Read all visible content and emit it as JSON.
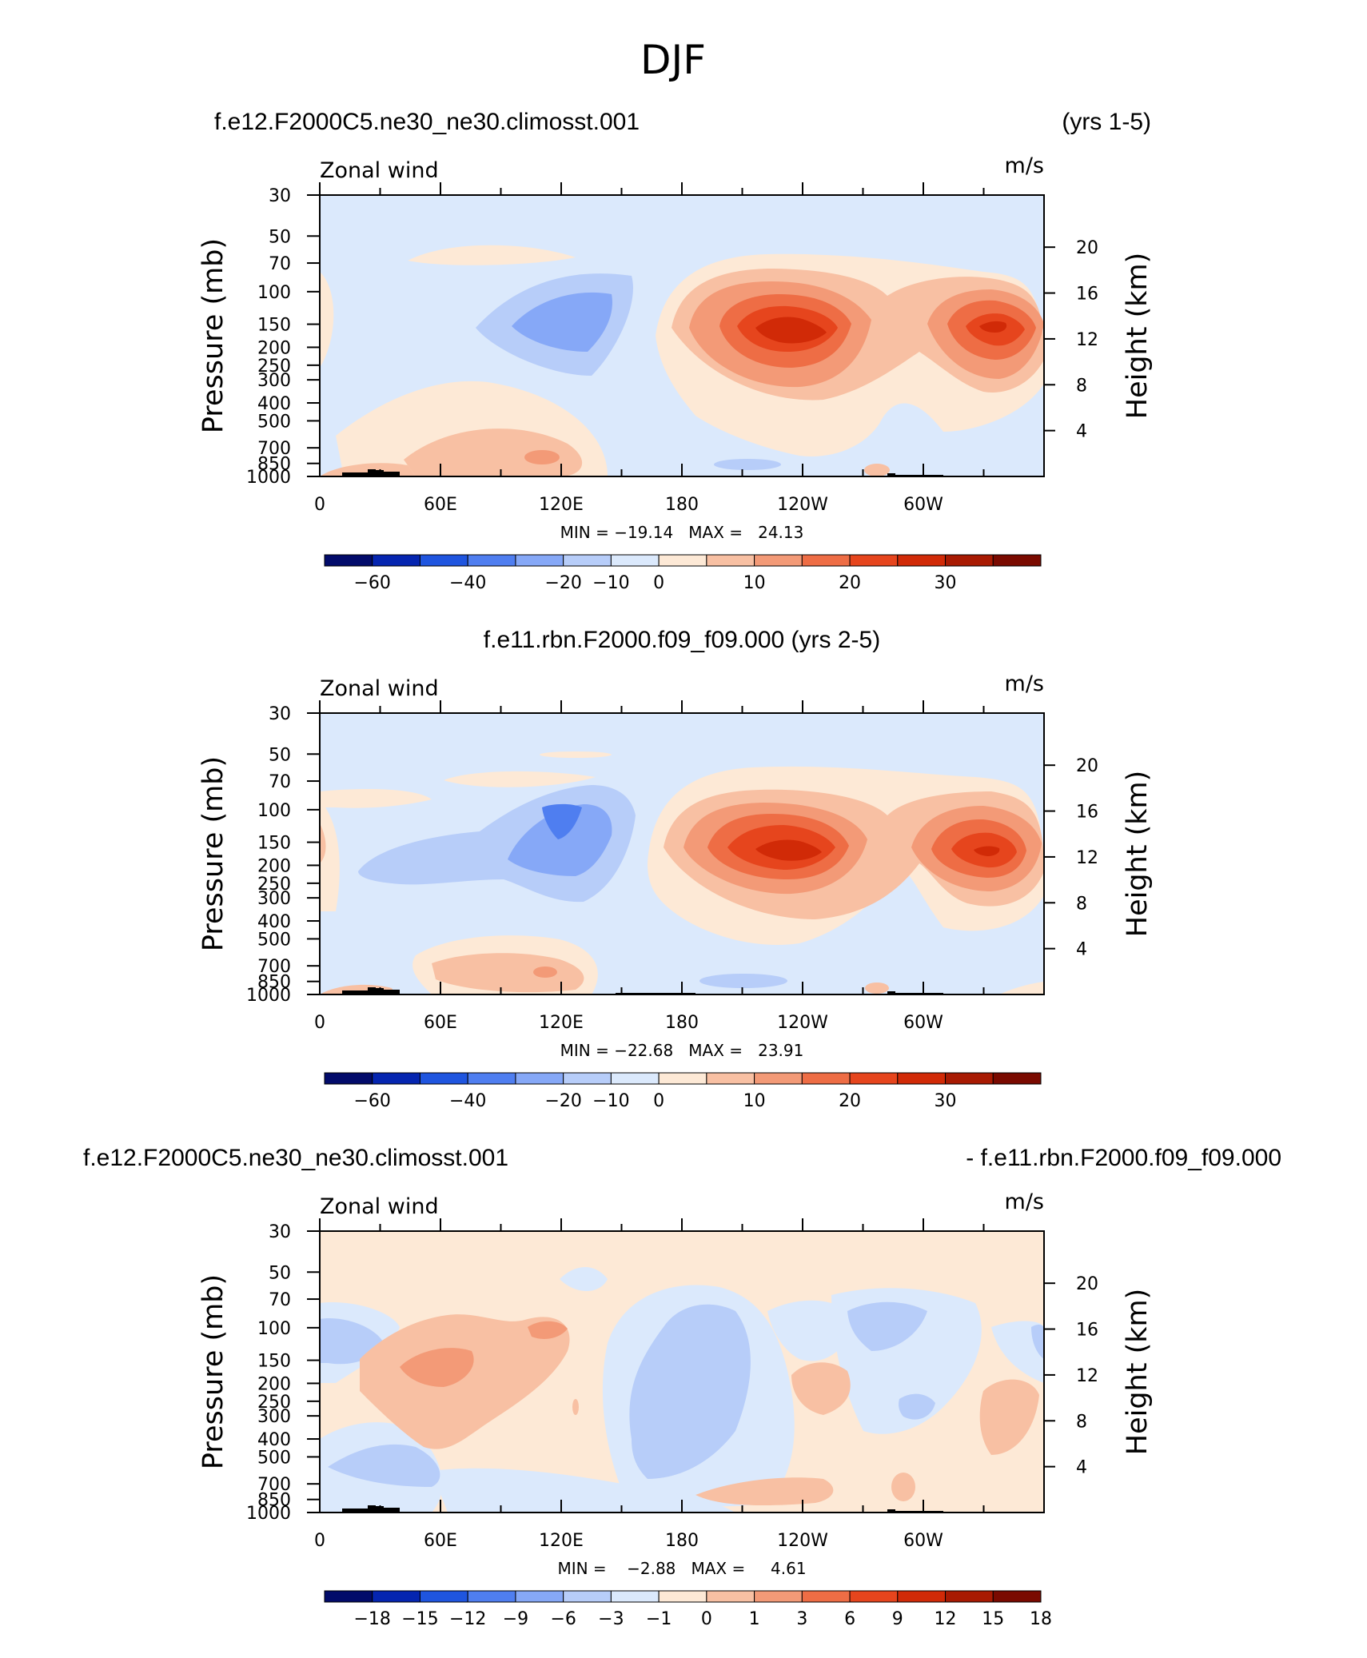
{
  "figure_title": "DJF",
  "chart_data": [
    {
      "type": "heatmap",
      "title_left": "f.e12.F2000C5.ne30_ne30.climosst.001",
      "title_right": "(yrs 1-5)",
      "variable": "Zonal wind",
      "units": "m/s",
      "ylabel": "Pressure (mb)",
      "ylabel_right": "Height (km)",
      "x_ticks": [
        "0",
        "60E",
        "120E",
        "180",
        "120W",
        "60W"
      ],
      "y_ticks": [
        "30",
        "50",
        "70",
        "100",
        "150",
        "200",
        "250",
        "300",
        "400",
        "500",
        "700",
        "850",
        "1000"
      ],
      "height_ticks": [
        "20",
        "16",
        "12",
        "8",
        "4"
      ],
      "stats_text": "MIN = −19.14   MAX =   24.13",
      "min": -19.14,
      "max": 24.13,
      "colorbar_ticks": [
        "−60",
        "−40",
        "−20",
        "−10",
        "0",
        "10",
        "20",
        "30"
      ],
      "features": [
        {
          "kind": "jet",
          "center_lon": 225,
          "center_p": 150,
          "value": 24.13
        },
        {
          "kind": "jet",
          "center_lon": 315,
          "center_p": 150,
          "value": 20
        },
        {
          "kind": "easterly",
          "center_lon": 115,
          "center_p": 150,
          "value": -19.14
        }
      ]
    },
    {
      "type": "heatmap",
      "title": "f.e11.rbn.F2000.f09_f09.000 (yrs 2-5)",
      "variable": "Zonal wind",
      "units": "m/s",
      "ylabel": "Pressure (mb)",
      "ylabel_right": "Height (km)",
      "x_ticks": [
        "0",
        "60E",
        "120E",
        "180",
        "120W",
        "60W"
      ],
      "y_ticks": [
        "30",
        "50",
        "70",
        "100",
        "150",
        "200",
        "250",
        "300",
        "400",
        "500",
        "700",
        "850",
        "1000"
      ],
      "height_ticks": [
        "20",
        "16",
        "12",
        "8",
        "4"
      ],
      "stats_text": "MIN = −22.68   MAX =   23.91",
      "min": -22.68,
      "max": 23.91,
      "colorbar_ticks": [
        "−60",
        "−40",
        "−20",
        "−10",
        "0",
        "10",
        "20",
        "30"
      ],
      "features": [
        {
          "kind": "jet",
          "center_lon": 225,
          "center_p": 150,
          "value": 23.91
        },
        {
          "kind": "jet",
          "center_lon": 315,
          "center_p": 150,
          "value": 20
        },
        {
          "kind": "easterly",
          "center_lon": 118,
          "center_p": 120,
          "value": -22.68
        }
      ]
    },
    {
      "type": "heatmap",
      "title_left": "f.e12.F2000C5.ne30_ne30.climosst.001",
      "title_right": "- f.e11.rbn.F2000.f09_f09.000",
      "variable": "Zonal wind",
      "units": "m/s",
      "ylabel": "Pressure (mb)",
      "ylabel_right": "Height (km)",
      "x_ticks": [
        "0",
        "60E",
        "120E",
        "180",
        "120W",
        "60W"
      ],
      "y_ticks": [
        "30",
        "50",
        "70",
        "100",
        "150",
        "200",
        "250",
        "300",
        "400",
        "500",
        "700",
        "850",
        "1000"
      ],
      "height_ticks": [
        "20",
        "16",
        "12",
        "8",
        "4"
      ],
      "stats_text": "MIN =    −2.88   MAX =     4.61",
      "min": -2.88,
      "max": 4.61,
      "colorbar_ticks": [
        "−18",
        "−15",
        "−12",
        "−9",
        "−6",
        "−3",
        "−1",
        "0",
        "1",
        "3",
        "6",
        "9",
        "12",
        "15",
        "18"
      ],
      "features": []
    }
  ],
  "colors": {
    "scale": [
      "#020b6a",
      "#0525b0",
      "#1f55df",
      "#4f7ef0",
      "#86a8f7",
      "#b7cdf9",
      "#dbe9fc",
      "#fde9d6",
      "#f8c0a3",
      "#f39a77",
      "#ee6d45",
      "#e6451d",
      "#d12a07",
      "#a81a02",
      "#7a0a00"
    ]
  }
}
